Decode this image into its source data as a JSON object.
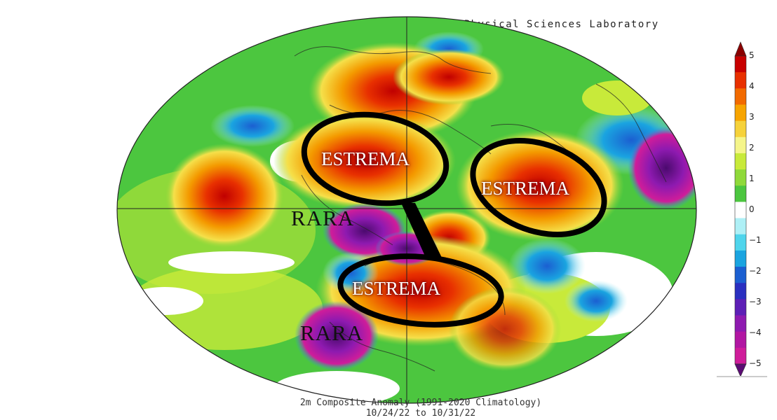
{
  "header": {
    "credit": "NOAA Physical Sciences Laboratory"
  },
  "caption": {
    "line1": "2m   Composite Anomaly (1991-2020 Climatology)",
    "line2": "10/24/22  to 10/31/22"
  },
  "annotations": {
    "extreme_labels": [
      "ESTREMA",
      "ESTREMA",
      "ESTREMA"
    ],
    "rare_labels": [
      "RARA",
      "RARA"
    ]
  },
  "colorbar": {
    "ticks": [
      "5",
      "4",
      "3",
      "2",
      "1",
      "0",
      "−1",
      "−2",
      "−3",
      "−4",
      "−5"
    ],
    "colors": [
      "#8b0000",
      "#c80000",
      "#e83000",
      "#f26a00",
      "#f7a400",
      "#f6d23a",
      "#f5f58a",
      "#c8ea3a",
      "#8fd93a",
      "#4cc63f",
      "#ffffff",
      "#aef0f6",
      "#4fd5ec",
      "#1aa4e0",
      "#1b5fd1",
      "#2a2fc0",
      "#5d1fb6",
      "#8e1ab0",
      "#b116a2",
      "#cf1c9a",
      "#5b0c73"
    ]
  },
  "colors": {
    "outline": "#000000",
    "label_glow": "#660000"
  }
}
